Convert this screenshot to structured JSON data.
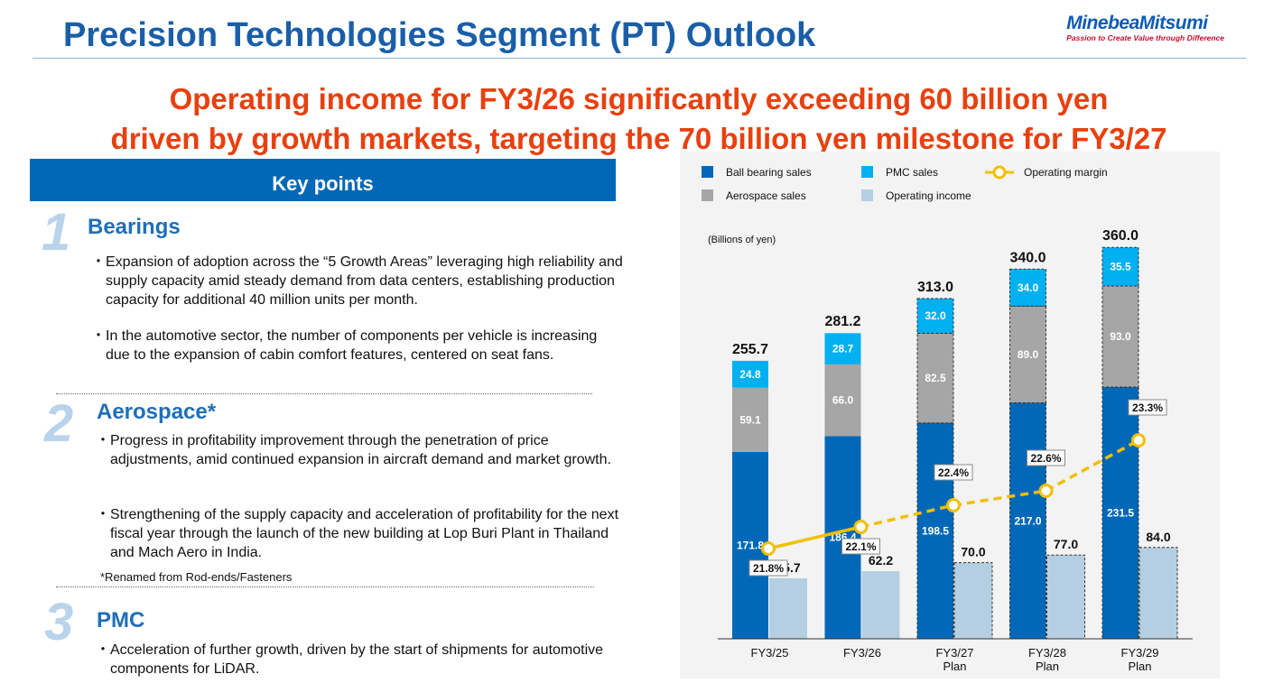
{
  "header": {
    "title": "Precision Technologies Segment (PT) Outlook",
    "logo_name": "MinebeaMitsumi",
    "logo_tagline": "Passion to Create Value through Difference"
  },
  "headline": {
    "line1": "Operating income for FY3/26 significantly exceeding 60 billion yen",
    "line2": "driven by growth markets, targeting the 70 billion yen milestone for FY3/27"
  },
  "key_points": {
    "title": "Key points",
    "sections": [
      {
        "number": "1",
        "heading": "Bearings",
        "bullets": [
          "Expansion of adoption across the “5 Growth Areas” leveraging high reliability and supply capacity amid steady demand from data centers, establishing production capacity for additional 40 million units per month.",
          "In the automotive sector, the number of components per vehicle is increasing due to the expansion of cabin comfort features, centered on seat fans."
        ]
      },
      {
        "number": "2",
        "heading": "Aerospace*",
        "bullets": [
          "Progress in profitability improvement through the penetration of price adjustments, amid continued expansion in aircraft demand and market growth.",
          "Strengthening of the supply capacity and acceleration of profitability for the next fiscal year through the launch of the new building at Lop Buri Plant in Thailand and Mach Aero in India."
        ],
        "note": "*Renamed from Rod-ends/Fasteners"
      },
      {
        "number": "3",
        "heading": "PMC",
        "bullets": [
          "Acceleration of further growth, driven by the start of shipments for automotive components for LiDAR."
        ]
      }
    ]
  },
  "chart_data": {
    "type": "bar",
    "unit_label": "(Billions of yen)",
    "categories": [
      "FY3/25",
      "FY3/26",
      "FY3/27\nPlan",
      "FY3/28\nPlan",
      "FY3/29\nPlan"
    ],
    "plan_flags": [
      false,
      false,
      true,
      true,
      true
    ],
    "stacked_series": [
      {
        "name": "Ball bearing sales",
        "color": "#0068b7",
        "values": [
          171.8,
          186.4,
          198.5,
          217.0,
          231.5
        ]
      },
      {
        "name": "Aerospace sales",
        "color": "#a6a6a6",
        "values": [
          59.1,
          66.0,
          82.5,
          89.0,
          93.0
        ]
      },
      {
        "name": "PMC sales",
        "color": "#00b0f0",
        "values": [
          24.8,
          28.7,
          32.0,
          34.0,
          35.5
        ]
      }
    ],
    "sales_totals": [
      255.7,
      281.2,
      313.0,
      340.0,
      360.0
    ],
    "income_series": {
      "name": "Operating income",
      "color": "#b4cfe2",
      "values": [
        55.7,
        62.2,
        70.0,
        77.0,
        84.0
      ]
    },
    "margin_series": {
      "name": "Operating margin",
      "color": "#f0c000",
      "values": [
        21.8,
        22.1,
        22.4,
        22.6,
        23.3
      ],
      "labels": [
        "21.8%",
        "22.1%",
        "22.4%",
        "22.6%",
        "23.3%"
      ]
    },
    "ylim": [
      0,
      380
    ],
    "legend_position": "top"
  }
}
